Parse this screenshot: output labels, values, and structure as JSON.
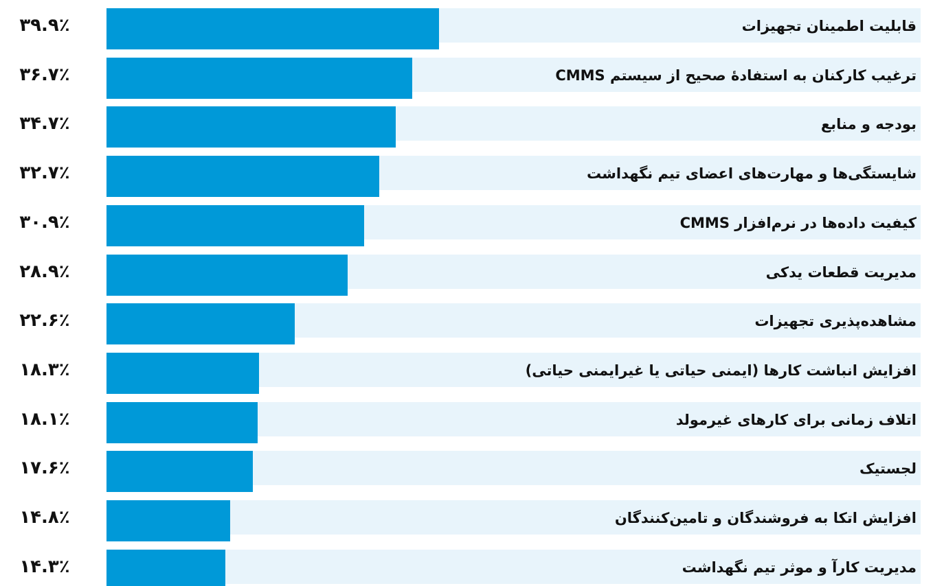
{
  "chart_data": {
    "type": "bar",
    "orientation": "horizontal",
    "color": "#0099d8",
    "band_color": "#e8f4fb",
    "categories": [
      "قابلیت اطمینان تجهیزات",
      "ترغیب کارکنان به استفادهٔ صحیح از سیستم CMMS",
      "بودجه و منابع",
      "شایستگی‌ها و مهارت‌های اعضای تیم نگهداشت",
      "کیفیت داده‌ها در نرم‌افزار CMMS",
      "مدیریت قطعات یدکی",
      "مشاهده‌پذیری تجهیزات",
      "افزایش انباشت کارها (ایمنی حیاتی یا غیرایمنی حیاتی)",
      "اتلاف زمانی برای کارهای غیرمولد",
      "لجستیک",
      "افزایش اتکا به فروشندگان و تامین‌کنندگان",
      "مدیریت کارآ و موثر تیم نگهداشت"
    ],
    "values": [
      39.9,
      36.7,
      34.7,
      32.7,
      30.9,
      28.9,
      22.6,
      18.3,
      18.1,
      17.6,
      14.8,
      14.3
    ],
    "value_labels": [
      "۳۹.۹٪",
      "۳۶.۷٪",
      "۳۴.۷٪",
      "۳۲.۷٪",
      "۳۰.۹٪",
      "۲۸.۹٪",
      "۲۲.۶٪",
      "۱۸.۳٪",
      "۱۸.۱٪",
      "۱۷.۶٪",
      "۱۴.۸٪",
      "۱۴.۳٪"
    ]
  }
}
